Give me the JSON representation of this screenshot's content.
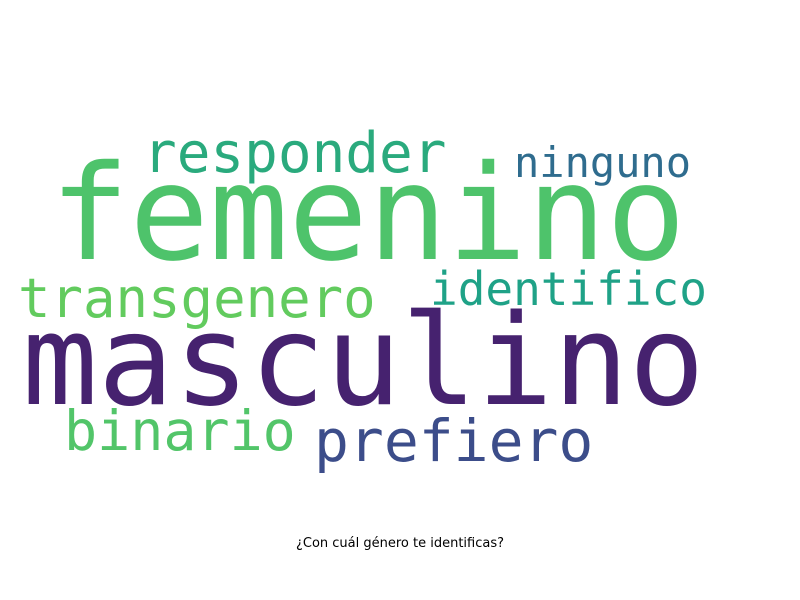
{
  "words": [
    {
      "id": "femenino",
      "text": "femenino",
      "color": "#4ec36b"
    },
    {
      "id": "masculino",
      "text": "masculino",
      "color": "#46226f"
    },
    {
      "id": "responder",
      "text": "responder",
      "color": "#2aaa7d"
    },
    {
      "id": "ninguno",
      "text": "ninguno",
      "color": "#2f6c8e"
    },
    {
      "id": "transgenero",
      "text": "transgenero",
      "color": "#62cb5e"
    },
    {
      "id": "identifico",
      "text": "identifico",
      "color": "#1fa287"
    },
    {
      "id": "binario",
      "text": "binario",
      "color": "#52c569"
    },
    {
      "id": "prefiero",
      "text": "prefiero",
      "color": "#3c4d8a"
    }
  ],
  "caption": "¿Con cuál género te identificas?",
  "background": "#ffffff"
}
